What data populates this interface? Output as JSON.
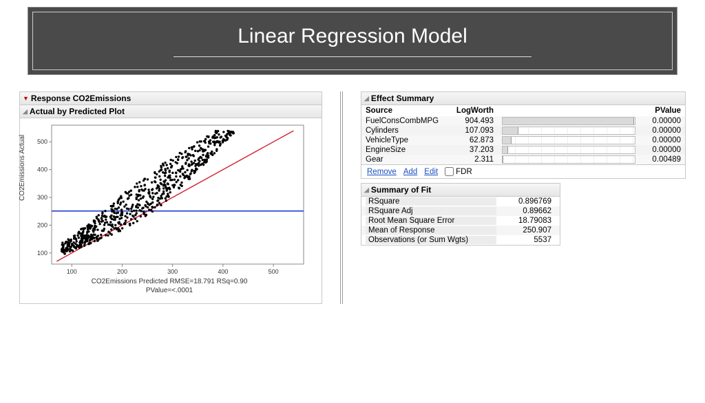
{
  "header": {
    "title": "Linear Regression Model"
  },
  "leftPanel": {
    "responseTitle": "Response CO2Emissions",
    "plotTitle": "Actual by Predicted Plot",
    "chart": {
      "type": "scatter",
      "xlim": [
        60,
        560
      ],
      "ylim": [
        60,
        560
      ],
      "xticks": [
        100,
        200,
        300,
        400,
        500
      ],
      "yticks": [
        100,
        200,
        300,
        400,
        500
      ],
      "ylabel": "CO2Emissions Actual",
      "xlabel_line1": "CO2Emissions Predicted RMSE=18.791 RSq=0.90",
      "xlabel_line2": "PValue=<.0001",
      "diag_color": "#d02030",
      "mean_color": "#2040d0",
      "mean_y": 251,
      "point_color": "#000000",
      "background": "#ffffff",
      "axis_color": "#888888"
    }
  },
  "effectSummary": {
    "title": "Effect Summary",
    "headers": {
      "source": "Source",
      "logworth": "LogWorth",
      "pvalue": "PValue"
    },
    "max_logworth": 910,
    "rows": [
      {
        "source": "FuelConsCombMPG",
        "logworth": "904.493",
        "lw_num": 904.493,
        "pvalue": "0.00000"
      },
      {
        "source": "Cylinders",
        "logworth": "107.093",
        "lw_num": 107.093,
        "pvalue": "0.00000"
      },
      {
        "source": "VehicleType",
        "logworth": "62.873",
        "lw_num": 62.873,
        "pvalue": "0.00000"
      },
      {
        "source": "EngineSize",
        "logworth": "37.203",
        "lw_num": 37.203,
        "pvalue": "0.00000"
      },
      {
        "source": "Gear",
        "logworth": "2.311",
        "lw_num": 2.311,
        "pvalue": "0.00489"
      }
    ],
    "links": {
      "remove": "Remove",
      "add": "Add",
      "edit": "Edit",
      "fdr": "FDR"
    }
  },
  "summaryFit": {
    "title": "Summary of Fit",
    "rows": [
      {
        "k": "RSquare",
        "v": "0.896769"
      },
      {
        "k": "RSquare Adj",
        "v": "0.89662"
      },
      {
        "k": "Root Mean Square Error",
        "v": "18.79083"
      },
      {
        "k": "Mean of Response",
        "v": "250.907"
      },
      {
        "k": "Observations (or Sum Wgts)",
        "v": "5537"
      }
    ]
  }
}
